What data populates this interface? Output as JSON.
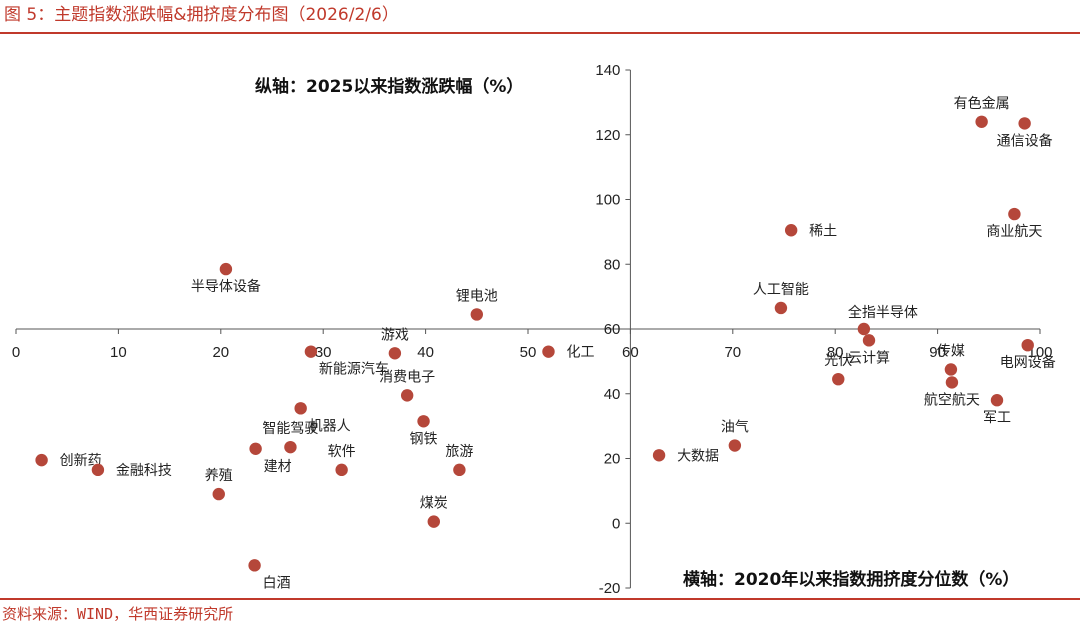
{
  "header": {
    "title": "图 5：主题指数涨跌幅&拥挤度分布图（2026/2/6）"
  },
  "footer": {
    "source": "资料来源：WIND，华西证券研究所"
  },
  "colors": {
    "accent": "#c0392b",
    "point": "#b5473a",
    "axis": "#555555"
  },
  "chart_data": {
    "type": "scatter",
    "xlabel": "横轴：2020年以来指数拥挤度分位数（%）",
    "ylabel": "纵轴：2025以来指数涨跌幅（%）",
    "xlim": [
      0,
      100
    ],
    "ylim": [
      -20,
      140
    ],
    "xticks": [
      "0",
      "10",
      "20",
      "30",
      "40",
      "50",
      "60",
      "70",
      "80",
      "90",
      "100"
    ],
    "yticks": [
      "-20",
      "0",
      "20",
      "40",
      "60",
      "80",
      "100",
      "120",
      "140"
    ],
    "crosshair": {
      "x": 60,
      "y": 60
    },
    "points": [
      {
        "name": "创新药",
        "x": 2.5,
        "y": 19.5,
        "pos": "r"
      },
      {
        "name": "金融科技",
        "x": 8,
        "y": 16.5,
        "pos": "r"
      },
      {
        "name": "半导体设备",
        "x": 20.5,
        "y": 78.5,
        "pos": "b"
      },
      {
        "name": "养殖",
        "x": 19.8,
        "y": 9,
        "pos": "t"
      },
      {
        "name": "白酒",
        "x": 23.3,
        "y": -13,
        "pos": "br"
      },
      {
        "name": "建材",
        "x": 23.4,
        "y": 23,
        "pos": "br"
      },
      {
        "name": "智能驾驶",
        "x": 26.8,
        "y": 23.5,
        "pos": "t"
      },
      {
        "name": "机器人",
        "x": 27.8,
        "y": 35.5,
        "pos": "br"
      },
      {
        "name": "新能源汽车",
        "x": 28.8,
        "y": 53,
        "pos": "br"
      },
      {
        "name": "软件",
        "x": 31.8,
        "y": 16.5,
        "pos": "t"
      },
      {
        "name": "游戏",
        "x": 37,
        "y": 52.5,
        "pos": "t"
      },
      {
        "name": "消费电子",
        "x": 38.2,
        "y": 39.5,
        "pos": "t"
      },
      {
        "name": "钢铁",
        "x": 39.8,
        "y": 31.5,
        "pos": "b"
      },
      {
        "name": "煤炭",
        "x": 40.8,
        "y": 0.5,
        "pos": "t"
      },
      {
        "name": "旅游",
        "x": 43.3,
        "y": 16.5,
        "pos": "t"
      },
      {
        "name": "锂电池",
        "x": 45,
        "y": 64.5,
        "pos": "t"
      },
      {
        "name": "化工",
        "x": 52,
        "y": 53,
        "pos": "r"
      },
      {
        "name": "大数据",
        "x": 62.8,
        "y": 21,
        "pos": "r"
      },
      {
        "name": "油气",
        "x": 70.2,
        "y": 24,
        "pos": "t"
      },
      {
        "name": "人工智能",
        "x": 74.7,
        "y": 66.5,
        "pos": "t"
      },
      {
        "name": "稀土",
        "x": 75.7,
        "y": 90.5,
        "pos": "r"
      },
      {
        "name": "光伏",
        "x": 80.3,
        "y": 44.5,
        "pos": "t"
      },
      {
        "name": "全指半导体",
        "x": 82.8,
        "y": 60,
        "pos": "tr"
      },
      {
        "name": "云计算",
        "x": 83.3,
        "y": 56.5,
        "pos": "b"
      },
      {
        "name": "传媒",
        "x": 91.3,
        "y": 47.5,
        "pos": "t"
      },
      {
        "name": "航空航天",
        "x": 91.4,
        "y": 43.5,
        "pos": "b"
      },
      {
        "name": "有色金属",
        "x": 94.3,
        "y": 124,
        "pos": "t"
      },
      {
        "name": "军工",
        "x": 95.8,
        "y": 38,
        "pos": "b"
      },
      {
        "name": "商业航天",
        "x": 97.5,
        "y": 95.5,
        "pos": "b"
      },
      {
        "name": "通信设备",
        "x": 98.5,
        "y": 123.5,
        "pos": "b"
      },
      {
        "name": "电网设备",
        "x": 98.8,
        "y": 55,
        "pos": "b"
      }
    ]
  }
}
